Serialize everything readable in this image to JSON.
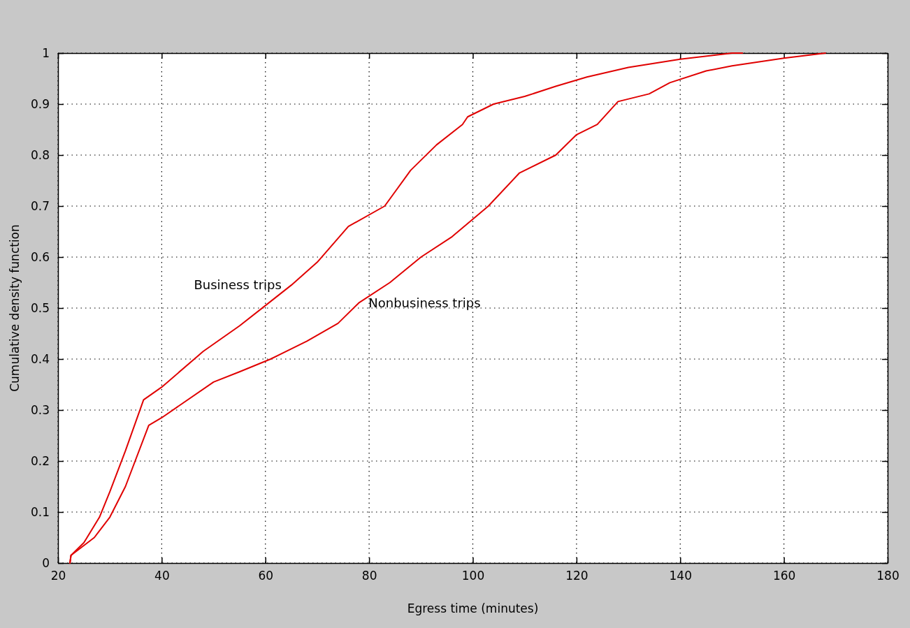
{
  "chart_data": {
    "type": "line",
    "xlabel": "Egress time  (minutes)",
    "ylabel": "Cumulative density function",
    "xlim": [
      20,
      180
    ],
    "xticks": [
      20,
      40,
      60,
      80,
      100,
      120,
      140,
      160,
      180
    ],
    "ylim": [
      0,
      1
    ],
    "yticks": [
      0,
      0.1,
      0.2,
      0.3,
      0.4,
      0.5,
      0.6,
      0.7,
      0.8,
      0.9,
      1
    ],
    "grid": true,
    "line_style": "solid",
    "marker": "none",
    "series": [
      {
        "name": "Business trips",
        "color": "#e00000",
        "x": [
          22.3,
          22.5,
          25,
          28,
          30,
          33,
          36.5,
          40,
          48,
          55,
          60,
          65,
          70,
          76,
          83,
          88,
          93,
          98,
          99,
          104,
          110,
          116,
          122,
          130,
          140,
          150,
          152
        ],
        "values": [
          0,
          0.015,
          0.04,
          0.09,
          0.14,
          0.22,
          0.32,
          0.345,
          0.415,
          0.465,
          0.505,
          0.545,
          0.59,
          0.66,
          0.7,
          0.77,
          0.82,
          0.86,
          0.875,
          0.9,
          0.915,
          0.935,
          0.953,
          0.972,
          0.988,
          1,
          1
        ]
      },
      {
        "name": "Nonbusiness trips",
        "color": "#e00000",
        "x": [
          22.3,
          22.5,
          27,
          30,
          33,
          37.5,
          40,
          50,
          55,
          61,
          68,
          74,
          78,
          84,
          90,
          96,
          103,
          109,
          116,
          120,
          124,
          128,
          134,
          138,
          145,
          150,
          160,
          168
        ],
        "values": [
          0,
          0.015,
          0.05,
          0.09,
          0.15,
          0.27,
          0.285,
          0.355,
          0.375,
          0.4,
          0.435,
          0.47,
          0.51,
          0.55,
          0.6,
          0.64,
          0.7,
          0.765,
          0.8,
          0.84,
          0.86,
          0.905,
          0.92,
          0.942,
          0.965,
          0.975,
          0.99,
          1
        ]
      }
    ]
  }
}
